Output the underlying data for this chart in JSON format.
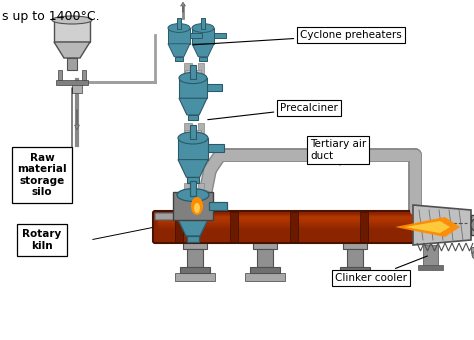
{
  "bg_color": "#ffffff",
  "text_top": "s up to 1400°C.",
  "labels": {
    "cyclone": "Cyclone preheaters",
    "precalciner": "Precalciner",
    "tertiary": "Tertiary air\nduct",
    "raw_material": "Raw\nmaterial\nstorage\nsilo",
    "rotary_kiln": "Rotary\nkiln",
    "clinker": "Clinker cooler"
  },
  "kiln_color": "#8B2500",
  "kiln_highlight": "#CC4400",
  "flame_color_1": "#FF8C00",
  "flame_color_2": "#FF4500",
  "cyclone_color": "#4A90A4",
  "cyclone_dark": "#2a5a6a",
  "pipe_color": "#B0B0B0",
  "pipe_dark": "#888888",
  "support_color": "#909090",
  "support_dark": "#505050",
  "cooler_color": "#C8C8C8",
  "silo_color": "#C0C0C0",
  "label_edge": "#000000",
  "label_bg": "#ffffff",
  "annotation_color": "#000000"
}
